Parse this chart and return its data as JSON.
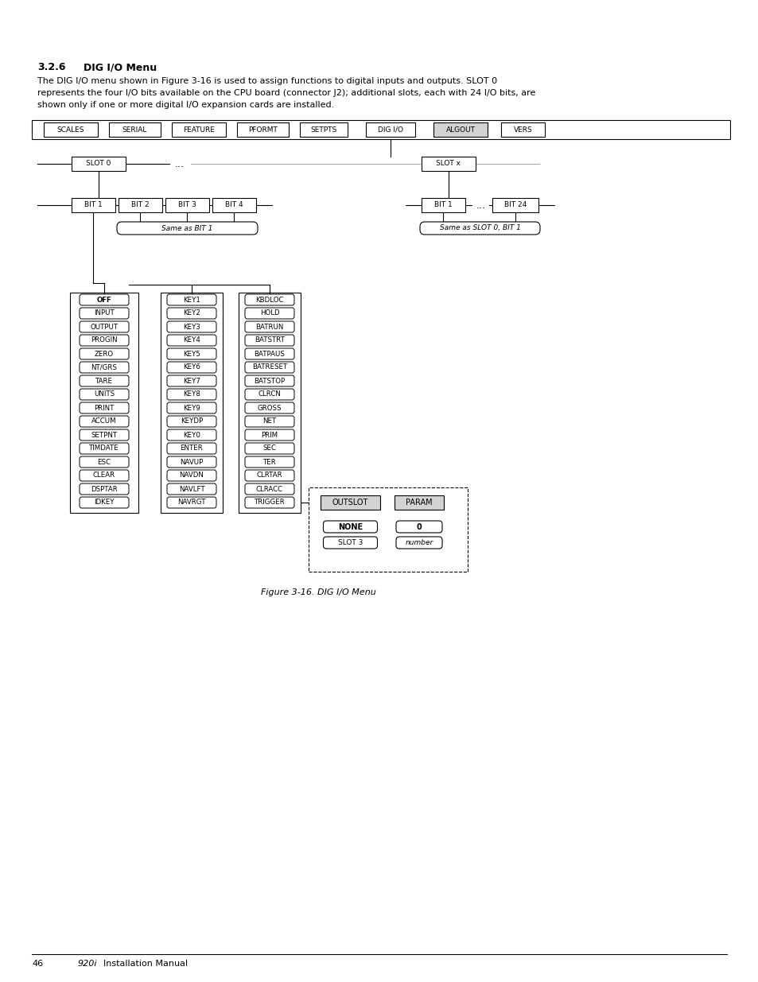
{
  "title_num": "3.2.6",
  "title_text": "DIG I/O Menu",
  "description_line1": "The DIG I/O menu shown in Figure 3-16 is used to assign functions to digital inputs and outputs. SLOT 0",
  "description_line2": "represents the four I/O bits available on the CPU board (connector J2); additional slots, each with 24 I/O bits, are",
  "description_line3": "shown only if one or more digital I/O expansion cards are installed.",
  "figure_caption": "Figure 3-16. DIG I/O Menu",
  "nav_menu": [
    "SCALES",
    "SERIAL",
    "FEATURE",
    "PFORMT",
    "SETPTS",
    "DIG I/O",
    "ALGOUT",
    "VERS"
  ],
  "highlighted_nav": "ALGOUT",
  "col1_items": [
    "OFF",
    "INPUT",
    "OUTPUT",
    "PROGIN",
    "ZERO",
    "NT/GRS",
    "TARE",
    "UNITS",
    "PRINT",
    "ACCUM",
    "SETPNT",
    "TIMDATE",
    "ESC",
    "CLEAR",
    "DSPTAR",
    "IDKEY"
  ],
  "col2_items": [
    "KEY1",
    "KEY2",
    "KEY3",
    "KEY4",
    "KEY5",
    "KEY6",
    "KEY7",
    "KEY8",
    "KEY9",
    "KEYDP",
    "KEY0",
    "ENTER",
    "NAVUP",
    "NAVDN",
    "NAVLFT",
    "NAVRGT"
  ],
  "col3_items": [
    "KBDLOC",
    "HOLD",
    "BATRUN",
    "BATSTRT",
    "BATPAUS",
    "BATRESET",
    "BATSTOP",
    "CLRCN",
    "GROSS",
    "NET",
    "PRIM",
    "SEC",
    "TER",
    "CLRTAR",
    "CLRACC",
    "TRIGGER"
  ],
  "outslot_items": [
    "NONE",
    "SLOT 3"
  ],
  "param_items": [
    "0",
    "number"
  ],
  "bg_color": "#ffffff",
  "highlight_color": "#d3d3d3",
  "gray_line_color": "#aaaaaa"
}
